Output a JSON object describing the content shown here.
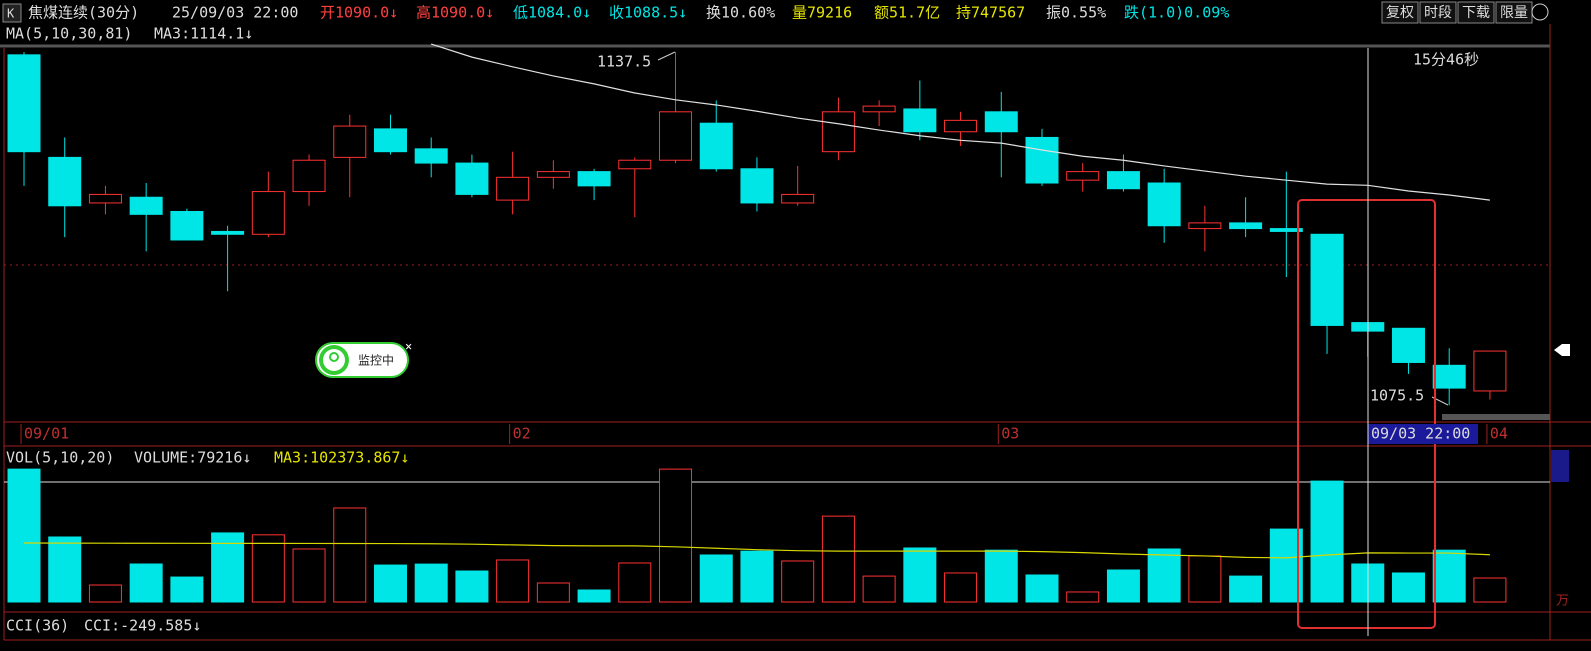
{
  "header": {
    "icon": "K",
    "symbol": "焦煤连续(30分)",
    "datetime": "25/09/03 22:00",
    "fields": [
      {
        "text": "开1090.0↓",
        "color": "#ff4040"
      },
      {
        "text": "高1090.0↓",
        "color": "#ff4040"
      },
      {
        "text": "低1084.0↓",
        "color": "#00e5e5"
      },
      {
        "text": "收1088.5↓",
        "color": "#00e5e5"
      },
      {
        "text": "换10.60%",
        "color": "#dddddd"
      },
      {
        "text": "量79216",
        "color": "#e5e500"
      },
      {
        "text": "额51.7亿",
        "color": "#e5e500"
      },
      {
        "text": "持747567",
        "color": "#e5e500"
      },
      {
        "text": "振0.55%",
        "color": "#dddddd"
      },
      {
        "text": "跌(1.0)0.09%",
        "color": "#00e5e5"
      }
    ],
    "buttons": [
      "复权",
      "时段",
      "下载",
      "限量"
    ]
  },
  "chart_data": [
    {
      "type": "candlestick",
      "indicator": "MA(5,10,30,81)",
      "categories": [
        "09/01",
        null,
        null,
        null,
        null,
        null,
        null,
        null,
        null,
        null,
        null,
        null,
        "02",
        null,
        null,
        null,
        null,
        null,
        null,
        null,
        null,
        null,
        null,
        null,
        "03",
        null,
        null,
        null,
        null,
        null,
        null,
        null,
        null,
        null,
        null,
        null,
        "04"
      ],
      "open": [
        1137,
        1119,
        1111,
        1112,
        1109.5,
        1106,
        1105.5,
        1113,
        1119,
        1124,
        1120.5,
        1118,
        1111.5,
        1115.5,
        1116.5,
        1117,
        1118.5,
        1125,
        1117,
        1111,
        1120,
        1127,
        1127.5,
        1123.5,
        1127,
        1122.5,
        1115,
        1116.5,
        1114.5,
        1106.5,
        1107.5,
        1106.5,
        1105.5,
        1090,
        1089,
        1082.5,
        1078
      ],
      "high": [
        1137.5,
        1122.5,
        1114,
        1114.5,
        1110,
        1107,
        1116.5,
        1119.5,
        1126.5,
        1126.5,
        1122.5,
        1119.5,
        1120,
        1118.5,
        1117,
        1119,
        1137.5,
        1129,
        1119,
        1117.5,
        1129.5,
        1129,
        1132.5,
        1127,
        1130.5,
        1124,
        1118,
        1119.5,
        1117,
        1110.5,
        1112,
        1116.5,
        1105.5,
        1090,
        1089,
        1085.5,
        1085
      ],
      "low": [
        1114,
        1105,
        1109,
        1102.5,
        1104.5,
        1095.5,
        1105,
        1110.5,
        1112,
        1119.5,
        1115.5,
        1112,
        1109,
        1113.5,
        1111.5,
        1108.5,
        1118,
        1116.5,
        1109.5,
        1110.5,
        1118.5,
        1124.5,
        1122,
        1121,
        1115.5,
        1114,
        1113,
        1113,
        1104,
        1102.5,
        1105,
        1098,
        1084.5,
        1084,
        1081,
        1075.5,
        1076.5
      ],
      "close": [
        1120,
        1110.5,
        1112.5,
        1109,
        1104.5,
        1105.5,
        1113,
        1118.5,
        1124.5,
        1120,
        1118,
        1112.5,
        1115.5,
        1116.5,
        1114,
        1118.5,
        1127,
        1117,
        1111,
        1112.5,
        1127,
        1128,
        1123.5,
        1125.5,
        1123.5,
        1114.5,
        1116.5,
        1113.5,
        1107,
        1107.5,
        1106.5,
        1106,
        1089.5,
        1088.5,
        1083,
        1078.5,
        1085
      ],
      "up_color": "#ff3232",
      "down_color": "#00e5e5",
      "lines": [
        {
          "label": "MA3:1114.1↓",
          "color": "#e0e0e0",
          "values": [
            null,
            null,
            null,
            null,
            null,
            null,
            null,
            null,
            null,
            null,
            1138.9,
            1136.6,
            1134.9,
            1133.3,
            1131.9,
            1130.3,
            1129.1,
            1128.2,
            1127.1,
            1125.9,
            1124.9,
            1123.8,
            1122.8,
            1122,
            1121.5,
            1120.3,
            1119.2,
            1118.5,
            1117.5,
            1116.6,
            1115.7,
            1115,
            1114.3,
            1114.1,
            1113.1,
            1112.4,
            1111.5
          ]
        }
      ],
      "ylim": [
        1072.9,
        1138.2
      ],
      "annotations": [
        "1137.5",
        "1075.5"
      ],
      "countdown": "15分46秒",
      "cursor_label": "09/03 22:00"
    },
    {
      "type": "bar",
      "indicator": "VOL(5,10,20)",
      "value_text": "VOLUME:79216↓",
      "unit": "万",
      "values": [
        277000,
        135500,
        35400,
        79200,
        52000,
        144000,
        140000,
        110500,
        196000,
        77000,
        79000,
        64600,
        87600,
        39600,
        25000,
        81300,
        277000,
        98000,
        106000,
        85500,
        179000,
        54000,
        112600,
        60500,
        108000,
        56300,
        20900,
        66700,
        110500,
        96000,
        54000,
        152000,
        252000,
        79216,
        60500,
        108000,
        50000
      ],
      "lines": [
        {
          "label": "MA3:102373.867↓",
          "color": "#d8d800",
          "values": [
            123000,
            122800,
            122600,
            122400,
            122300,
            122200,
            122200,
            122100,
            122000,
            121800,
            121500,
            120500,
            119000,
            117500,
            117000,
            117000,
            115000,
            112000,
            109000,
            107000,
            106000,
            106000,
            106000,
            106000,
            106000,
            105000,
            103000,
            100000,
            98000,
            96000,
            93000,
            92000,
            98000,
            102373.867,
            102000,
            102000,
            98500
          ]
        }
      ],
      "ylim": [
        0,
        296000
      ]
    }
  ],
  "cci": {
    "indicator": "CCI(36)",
    "value_text": "CCI:-249.585↓"
  },
  "widget": {
    "label": "监控中",
    "close": "×"
  }
}
